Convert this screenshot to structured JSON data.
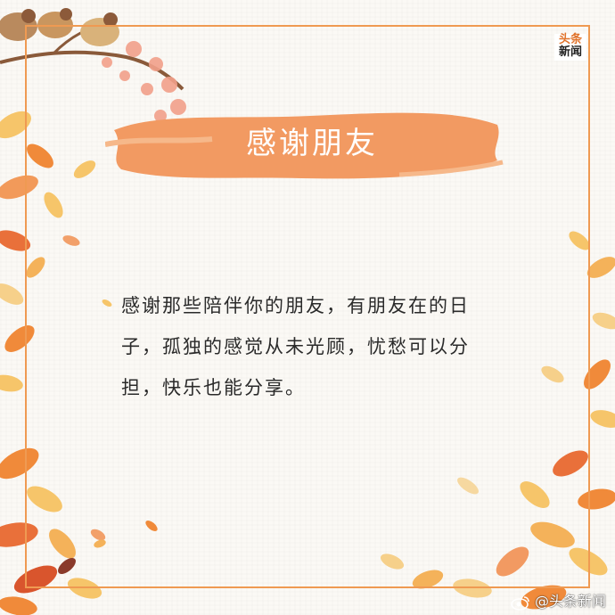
{
  "brand": {
    "logo_line1": "头条",
    "logo_line2": "新闻",
    "watermark": "@头条新闻"
  },
  "card": {
    "title": "感谢朋友",
    "body": "感谢那些陪伴你的朋友，有朋友在的日子，孤独的感觉从未光顾，忧愁可以分担，快乐也能分享。"
  },
  "colors": {
    "frame": "#ef9a52",
    "brush": "#f29a62",
    "leaf_orange": "#f08a3a",
    "leaf_yellow": "#f6c56a",
    "leaf_red": "#d9552d"
  },
  "icons": {
    "watermark_icon": "weibo-icon"
  }
}
